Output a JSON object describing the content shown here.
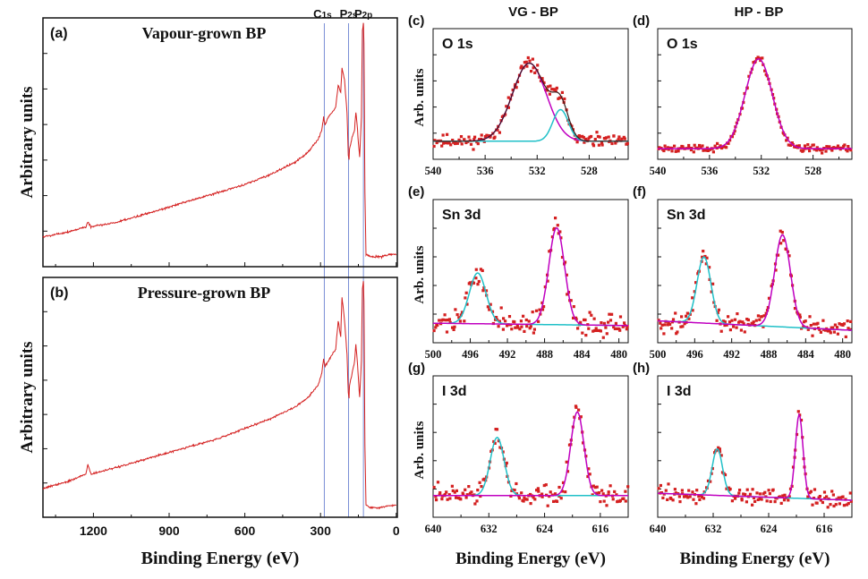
{
  "figure": {
    "column_titles": {
      "vg": "VG - BP",
      "hp": "HP - BP"
    },
    "peak_lines": [
      {
        "name": "C",
        "sub": "1s",
        "energy": 285
      },
      {
        "name": "P",
        "sub": "2s",
        "energy": 189
      },
      {
        "name": "P",
        "sub": "2p",
        "energy": 130
      }
    ],
    "colors": {
      "data": "#d42020",
      "peak_a": "#c000c0",
      "peak_b": "#20c0c8",
      "peak_line": "#7a8fd6",
      "sum": "#3a1a1a"
    }
  },
  "chart_data": [
    {
      "id": "a",
      "type": "line",
      "panel_label": "(a)",
      "title": "Vapour-grown BP",
      "ylabel": "Arbitrary units",
      "xlabel": "",
      "xlim": [
        1400,
        0
      ],
      "xticks": [
        "1200",
        "900",
        "600",
        "300",
        "0"
      ],
      "series": [
        {
          "name": "survey",
          "x": [
            1400,
            1300,
            1230,
            1222,
            1210,
            1100,
            1000,
            900,
            800,
            700,
            600,
            500,
            400,
            350,
            310,
            295,
            288,
            282,
            270,
            240,
            230,
            220,
            215,
            205,
            195,
            190,
            187,
            185,
            175,
            165,
            160,
            155,
            150,
            145,
            138,
            134,
            130,
            128,
            126,
            124,
            120,
            100,
            60,
            20,
            0
          ],
          "y": [
            0.12,
            0.14,
            0.16,
            0.18,
            0.16,
            0.18,
            0.21,
            0.24,
            0.27,
            0.3,
            0.33,
            0.37,
            0.42,
            0.46,
            0.51,
            0.55,
            0.6,
            0.57,
            0.6,
            0.64,
            0.73,
            0.7,
            0.8,
            0.75,
            0.62,
            0.45,
            0.43,
            0.47,
            0.52,
            0.55,
            0.62,
            0.57,
            0.5,
            0.44,
            0.6,
            0.95,
            0.98,
            0.9,
            0.6,
            0.3,
            0.05,
            0.04,
            0.04,
            0.05,
            0.05
          ]
        }
      ]
    },
    {
      "id": "b",
      "type": "line",
      "panel_label": "(b)",
      "title": "Pressure-grown BP",
      "ylabel": "Arbitrary units",
      "xlabel": "Binding Energy (eV)",
      "xlim": [
        1400,
        0
      ],
      "xticks": [
        "1200",
        "900",
        "600",
        "300",
        "0"
      ],
      "series": [
        {
          "name": "survey",
          "x": [
            1400,
            1300,
            1230,
            1222,
            1210,
            1100,
            1000,
            900,
            800,
            700,
            600,
            500,
            400,
            350,
            310,
            295,
            288,
            282,
            270,
            240,
            230,
            220,
            215,
            205,
            195,
            190,
            187,
            185,
            175,
            165,
            160,
            155,
            150,
            145,
            138,
            134,
            130,
            128,
            126,
            124,
            120,
            100,
            60,
            20,
            0
          ],
          "y": [
            0.12,
            0.15,
            0.18,
            0.22,
            0.18,
            0.21,
            0.24,
            0.27,
            0.3,
            0.33,
            0.37,
            0.41,
            0.46,
            0.5,
            0.55,
            0.6,
            0.66,
            0.63,
            0.65,
            0.7,
            0.82,
            0.75,
            0.92,
            0.82,
            0.68,
            0.52,
            0.5,
            0.55,
            0.6,
            0.65,
            0.72,
            0.66,
            0.58,
            0.5,
            0.65,
            0.95,
            0.98,
            0.9,
            0.6,
            0.3,
            0.05,
            0.04,
            0.04,
            0.05,
            0.05
          ]
        }
      ]
    },
    {
      "id": "c",
      "type": "scatter",
      "panel_label": "(c)",
      "title": "O 1s",
      "ylabel": "Arb. units",
      "xlabel": "",
      "xlim": [
        540,
        525
      ],
      "xticks": [
        "540",
        "536",
        "532",
        "528"
      ],
      "baseline": [
        0.12,
        0.12
      ],
      "peaks": [
        {
          "center": 532.6,
          "height": 0.74,
          "sigma": 1.3,
          "color": "peak_a"
        },
        {
          "center": 530.2,
          "height": 0.3,
          "sigma": 0.6,
          "color": "peak_b"
        }
      ],
      "noise": 0.09,
      "seed": 11,
      "envelope": true
    },
    {
      "id": "d",
      "type": "scatter",
      "panel_label": "(d)",
      "title": "O 1s",
      "ylabel": "",
      "xlabel": "",
      "xlim": [
        540,
        525
      ],
      "xticks": [
        "540",
        "536",
        "532",
        "528"
      ],
      "baseline": [
        0.05,
        0.05
      ],
      "peaks": [
        {
          "center": 532.2,
          "height": 0.85,
          "sigma": 1.05,
          "color": "peak_a"
        }
      ],
      "noise": 0.055,
      "seed": 23,
      "envelope": false
    },
    {
      "id": "e",
      "type": "scatter",
      "panel_label": "(e)",
      "title": "Sn 3d",
      "ylabel": "Arb. units",
      "xlabel": "",
      "xlim": [
        500,
        479
      ],
      "xticks": [
        "500",
        "496",
        "492",
        "488",
        "484",
        "480"
      ],
      "baseline": [
        0.12,
        0.1
      ],
      "peaks": [
        {
          "center": 495.2,
          "height": 0.43,
          "sigma": 0.9,
          "color": "peak_b"
        },
        {
          "center": 486.7,
          "height": 0.82,
          "sigma": 0.85,
          "color": "peak_a"
        }
      ],
      "noise": 0.14,
      "seed": 37,
      "envelope": false
    },
    {
      "id": "f",
      "type": "scatter",
      "panel_label": "(f)",
      "title": "Sn 3d",
      "ylabel": "",
      "xlabel": "",
      "xlim": [
        500,
        479
      ],
      "xticks": [
        "500",
        "496",
        "492",
        "488",
        "484",
        "480"
      ],
      "baseline": [
        0.14,
        0.06
      ],
      "peaks": [
        {
          "center": 495.0,
          "height": 0.56,
          "sigma": 0.75,
          "color": "peak_b"
        },
        {
          "center": 486.5,
          "height": 0.78,
          "sigma": 0.85,
          "color": "peak_a"
        }
      ],
      "noise": 0.12,
      "seed": 49,
      "envelope": false
    },
    {
      "id": "g",
      "type": "scatter",
      "panel_label": "(g)",
      "title": "I 3d",
      "ylabel": "Arb. units",
      "xlabel": "Binding Energy (eV)",
      "xlim": [
        640,
        612
      ],
      "xticks": [
        "640",
        "632",
        "624",
        "616"
      ],
      "baseline": [
        0.14,
        0.14
      ],
      "peaks": [
        {
          "center": 630.8,
          "height": 0.5,
          "sigma": 1.0,
          "color": "peak_b"
        },
        {
          "center": 619.3,
          "height": 0.72,
          "sigma": 0.95,
          "color": "peak_a"
        }
      ],
      "noise": 0.13,
      "seed": 61,
      "envelope": false
    },
    {
      "id": "h",
      "type": "scatter",
      "panel_label": "(h)",
      "title": "I 3d",
      "ylabel": "",
      "xlabel": "Binding Energy (eV)",
      "xlim": [
        640,
        612
      ],
      "xticks": [
        "640",
        "632",
        "624",
        "616"
      ],
      "baseline": [
        0.16,
        0.1
      ],
      "peaks": [
        {
          "center": 631.4,
          "height": 0.4,
          "sigma": 0.75,
          "color": "peak_b"
        },
        {
          "center": 619.6,
          "height": 0.72,
          "sigma": 0.55,
          "color": "peak_a"
        }
      ],
      "noise": 0.11,
      "seed": 73,
      "envelope": false
    }
  ]
}
